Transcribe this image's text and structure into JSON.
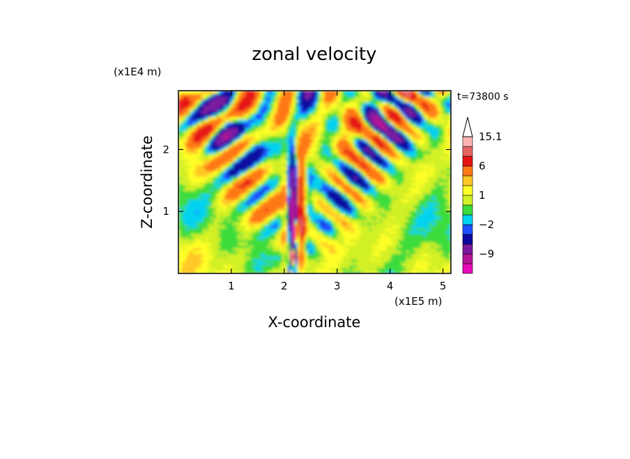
{
  "chart_data": {
    "type": "heatmap",
    "title": "zonal velocity",
    "xlabel": "X-coordinate",
    "ylabel": "Z-coordinate",
    "x_unit": "(x1E5 m)",
    "y_unit": "(x1E4 m)",
    "time_label": "t=73800 s",
    "xlim": [
      0,
      5.15
    ],
    "ylim": [
      0,
      2.95
    ],
    "x_ticks": [
      1,
      2,
      3,
      4,
      5
    ],
    "y_ticks": [
      1,
      2
    ],
    "colorbar": {
      "levels": [
        -15,
        -12,
        -9,
        -6,
        -3,
        -2,
        -1,
        0,
        1,
        2,
        3,
        6,
        9,
        12,
        15.1
      ],
      "labels": [
        {
          "value": 15.1,
          "text": "15.1"
        },
        {
          "value": 6,
          "text": "6"
        },
        {
          "value": 1,
          "text": "1"
        },
        {
          "value": -2,
          "text": "−2"
        },
        {
          "value": -9,
          "text": "−9"
        }
      ],
      "colors": [
        "#e60ab8",
        "#b41496",
        "#7a1aa0",
        "#0a0aa0",
        "#1e50ff",
        "#00d2f0",
        "#3cdc3c",
        "#d2f028",
        "#ffff28",
        "#ffc828",
        "#ff7814",
        "#e61414",
        "#e66464",
        "#ffb4b4"
      ],
      "overflow_top_arrow": true
    }
  }
}
